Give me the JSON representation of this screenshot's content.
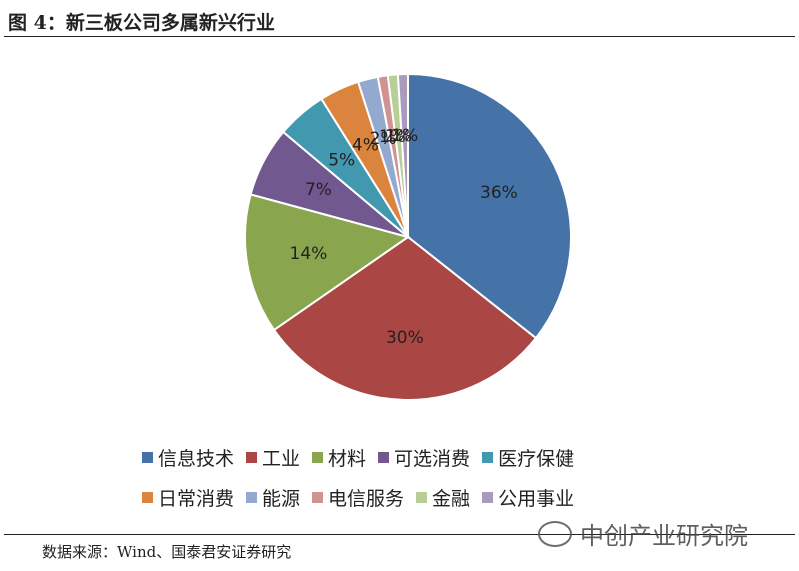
{
  "figure": {
    "title": "图  4：新三板公司多属新兴行业",
    "source": "数据来源：Wind、国泰君安证券研究",
    "watermark": "中创产业研究院"
  },
  "colors": [
    "#4572a7",
    "#aa4643",
    "#89a54e",
    "#71588f",
    "#4198af",
    "#db843d",
    "#93a9cf",
    "#d19392",
    "#b9cd96",
    "#a99bbd"
  ],
  "chart_data": {
    "type": "pie",
    "title": "",
    "start_angle_deg": 90,
    "direction": "clockwise",
    "legend_position": "bottom",
    "categories": [
      "信息技术",
      "工业",
      "材料",
      "可选消费",
      "医疗保健",
      "日常消费",
      "能源",
      "电信服务",
      "金融",
      "公用事业"
    ],
    "values": [
      36,
      30,
      14,
      7,
      5,
      4,
      2,
      1,
      1,
      1
    ],
    "data_labels": [
      "36%",
      "30%",
      "14%",
      "7%",
      "5%",
      "4%",
      "2%",
      "1%",
      "1%",
      "1%"
    ]
  }
}
